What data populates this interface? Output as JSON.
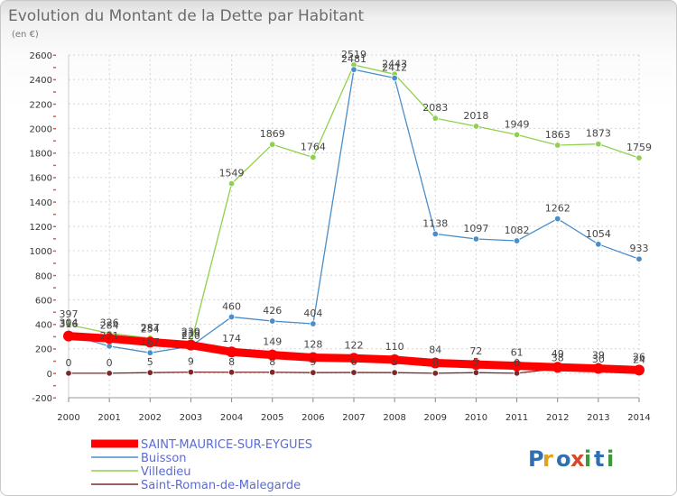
{
  "chart_data": {
    "type": "line",
    "title": "Evolution du Montant de la Dette par Habitant",
    "subtitle": "(en €)",
    "x": [
      "2000",
      "2001",
      "2002",
      "2003",
      "2004",
      "2005",
      "2006",
      "2007",
      "2008",
      "2009",
      "2010",
      "2011",
      "2012",
      "2013",
      "2014"
    ],
    "ylim": [
      -200,
      2600
    ],
    "yticks": [
      -200,
      0,
      200,
      400,
      600,
      800,
      1000,
      1200,
      1400,
      1600,
      1800,
      2000,
      2200,
      2400,
      2600
    ],
    "grid": true,
    "legend_position": "bottom-left",
    "series": [
      {
        "name": "Villedieu",
        "color": "#8fd14f",
        "values": [
          397,
          326,
          287,
          239,
          1549,
          1869,
          1764,
          2519,
          2443,
          2083,
          2018,
          1949,
          1863,
          1873,
          1759
        ]
      },
      {
        "name": "Buisson",
        "color": "#4a8ec9",
        "values": [
          316,
          221,
          167,
          220,
          460,
          426,
          404,
          2481,
          2412,
          1138,
          1097,
          1082,
          1262,
          1054,
          933
        ]
      },
      {
        "name": "Saint-Roman-de-Malegarde",
        "color": "#7a2a2a",
        "values": [
          0,
          0,
          5,
          9,
          8,
          8,
          5,
          6,
          5,
          0,
          5,
          0,
          38,
          30,
          24
        ]
      },
      {
        "name": "SAINT-MAURICE-SUR-EYGUES",
        "color": "#ff0000",
        "values": [
          304,
          284,
          254,
          230,
          174,
          149,
          128,
          122,
          110,
          84,
          72,
          61,
          49,
          39,
          26
        ]
      }
    ]
  },
  "legend_order": [
    3,
    1,
    0,
    2
  ],
  "brand": {
    "letters": [
      "P",
      "r",
      "o",
      "x",
      "i",
      "t",
      "i"
    ]
  }
}
